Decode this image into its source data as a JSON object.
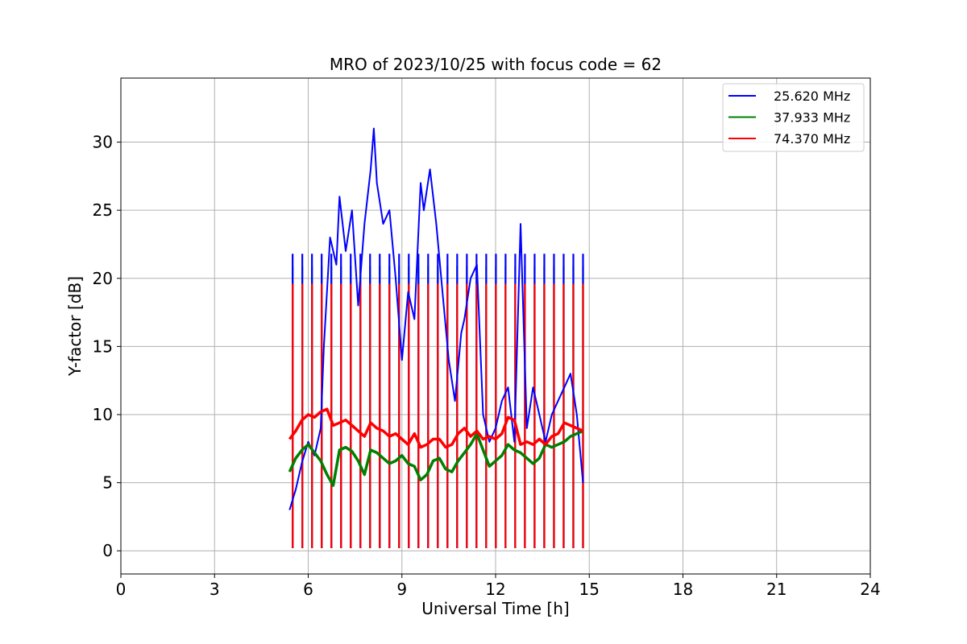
{
  "chart_data": {
    "type": "line",
    "title": "MRO of 2023/10/25 with focus code = 62",
    "xlabel": "Universal Time [h]",
    "ylabel": "Y-factor [dB]",
    "xlim": [
      0,
      24
    ],
    "ylim": [
      -1.7,
      34.7
    ],
    "xticks": [
      0,
      3,
      6,
      9,
      12,
      15,
      18,
      21,
      24
    ],
    "yticks": [
      0,
      5,
      10,
      15,
      20,
      25,
      30
    ],
    "grid": true,
    "legend_position": "top-right",
    "series": [
      {
        "name": "25.620 MHz",
        "color": "#0000ff",
        "x": [
          5.4,
          5.6,
          5.8,
          6.0,
          6.2,
          6.4,
          6.5,
          6.7,
          6.9,
          7.0,
          7.2,
          7.4,
          7.6,
          7.8,
          8.0,
          8.1,
          8.2,
          8.4,
          8.6,
          8.8,
          9.0,
          9.2,
          9.4,
          9.6,
          9.7,
          9.9,
          10.1,
          10.3,
          10.5,
          10.7,
          10.9,
          11.0,
          11.2,
          11.4,
          11.6,
          11.8,
          12.0,
          12.2,
          12.4,
          12.6,
          12.8,
          13.0,
          13.2,
          13.4,
          13.6,
          13.8,
          14.0,
          14.2,
          14.4,
          14.6,
          14.8
        ],
        "y": [
          3.0,
          4.5,
          6.5,
          8.0,
          7.0,
          9.0,
          15.0,
          23.0,
          21.0,
          26.0,
          22.0,
          25.0,
          18.0,
          24.0,
          28.0,
          31.0,
          27.0,
          24.0,
          25.0,
          20.0,
          14.0,
          19.0,
          17.0,
          27.0,
          25.0,
          28.0,
          24.0,
          19.0,
          14.0,
          11.0,
          16.0,
          17.0,
          20.0,
          21.0,
          10.0,
          8.0,
          9.0,
          11.0,
          12.0,
          8.0,
          24.0,
          9.0,
          12.0,
          10.0,
          8.0,
          10.0,
          11.0,
          12.0,
          13.0,
          10.0,
          5.0
        ]
      },
      {
        "name": "37.933 MHz",
        "color": "#008000",
        "x": [
          5.4,
          5.6,
          5.8,
          6.0,
          6.2,
          6.4,
          6.6,
          6.8,
          7.0,
          7.2,
          7.4,
          7.6,
          7.8,
          8.0,
          8.2,
          8.4,
          8.6,
          8.8,
          9.0,
          9.2,
          9.4,
          9.6,
          9.8,
          10.0,
          10.2,
          10.4,
          10.6,
          10.8,
          11.0,
          11.2,
          11.4,
          11.6,
          11.8,
          12.0,
          12.2,
          12.4,
          12.6,
          12.8,
          13.0,
          13.2,
          13.4,
          13.6,
          13.8,
          14.0,
          14.2,
          14.4,
          14.6,
          14.8
        ],
        "y": [
          5.8,
          6.8,
          7.4,
          7.8,
          7.2,
          6.6,
          5.6,
          4.8,
          7.4,
          7.6,
          7.3,
          6.6,
          5.6,
          7.4,
          7.2,
          6.8,
          6.4,
          6.6,
          7.0,
          6.4,
          6.2,
          5.2,
          5.6,
          6.6,
          6.8,
          6.0,
          5.8,
          6.6,
          7.2,
          7.8,
          8.6,
          7.4,
          6.2,
          6.6,
          7.0,
          7.8,
          7.4,
          7.2,
          6.8,
          6.4,
          6.8,
          7.8,
          7.6,
          7.8,
          8.0,
          8.4,
          8.6,
          8.8
        ]
      },
      {
        "name": "74.370 MHz",
        "color": "#ff0000",
        "x": [
          5.4,
          5.6,
          5.8,
          6.0,
          6.2,
          6.4,
          6.6,
          6.8,
          7.0,
          7.2,
          7.4,
          7.6,
          7.8,
          8.0,
          8.2,
          8.4,
          8.6,
          8.8,
          9.0,
          9.2,
          9.4,
          9.6,
          9.8,
          10.0,
          10.2,
          10.4,
          10.6,
          10.8,
          11.0,
          11.2,
          11.4,
          11.6,
          11.8,
          12.0,
          12.2,
          12.4,
          12.6,
          12.8,
          13.0,
          13.2,
          13.4,
          13.6,
          13.8,
          14.0,
          14.2,
          14.4,
          14.6,
          14.8
        ],
        "y": [
          8.2,
          8.8,
          9.6,
          10.0,
          9.8,
          10.2,
          10.4,
          9.2,
          9.4,
          9.6,
          9.2,
          8.8,
          8.4,
          9.4,
          9.0,
          8.8,
          8.4,
          8.6,
          8.2,
          7.8,
          8.6,
          7.6,
          7.8,
          8.2,
          8.2,
          7.6,
          7.8,
          8.6,
          9.0,
          8.4,
          8.8,
          8.2,
          8.4,
          8.2,
          8.6,
          9.8,
          9.6,
          7.8,
          8.0,
          7.8,
          8.2,
          7.8,
          8.4,
          8.6,
          9.4,
          9.2,
          9.0,
          8.8
        ]
      }
    ],
    "calibration": {
      "color_order": [
        "#008000",
        "#0000ff",
        "#ff0000"
      ],
      "levels": {
        "#0000ff": 21.8,
        "#008000": 20.9,
        "#ff0000": 19.6
      },
      "spike_start": 5.5,
      "spike_step": 0.31,
      "spike_end": 14.8
    }
  }
}
